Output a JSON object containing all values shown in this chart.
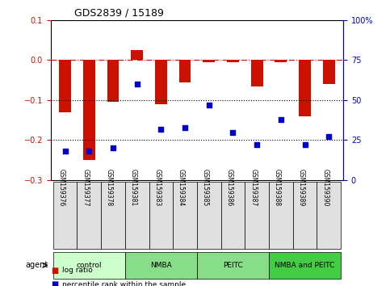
{
  "title": "GDS2839 / 15189",
  "samples": [
    "GSM159376",
    "GSM159377",
    "GSM159378",
    "GSM159381",
    "GSM159383",
    "GSM159384",
    "GSM159385",
    "GSM159386",
    "GSM159387",
    "GSM159388",
    "GSM159389",
    "GSM159390"
  ],
  "log_ratio": [
    -0.13,
    -0.25,
    -0.105,
    0.025,
    -0.11,
    -0.055,
    -0.005,
    -0.005,
    -0.065,
    -0.005,
    -0.14,
    -0.06
  ],
  "percentile_rank": [
    18,
    18,
    20,
    60,
    32,
    33,
    47,
    30,
    22,
    38,
    22,
    27
  ],
  "groups": [
    {
      "label": "control",
      "start": 0,
      "end": 3,
      "color": "#ccffcc"
    },
    {
      "label": "NMBA",
      "start": 3,
      "end": 6,
      "color": "#88dd88"
    },
    {
      "label": "PEITC",
      "start": 6,
      "end": 9,
      "color": "#88dd88"
    },
    {
      "label": "NMBA and PEITC",
      "start": 9,
      "end": 12,
      "color": "#44cc44"
    }
  ],
  "bar_color": "#cc1100",
  "dot_color": "#0000cc",
  "ylim_left": [
    -0.3,
    0.1
  ],
  "ylim_right": [
    0,
    100
  ],
  "yticks_left": [
    -0.3,
    -0.2,
    -0.1,
    0.0,
    0.1
  ],
  "yticks_right": [
    0,
    25,
    50,
    75,
    100
  ],
  "hline_dashed": 0.0,
  "hlines_dotted": [
    -0.1,
    -0.2
  ],
  "legend_items": [
    {
      "label": "log ratio",
      "color": "#cc1100"
    },
    {
      "label": "percentile rank within the sample",
      "color": "#0000cc"
    }
  ]
}
